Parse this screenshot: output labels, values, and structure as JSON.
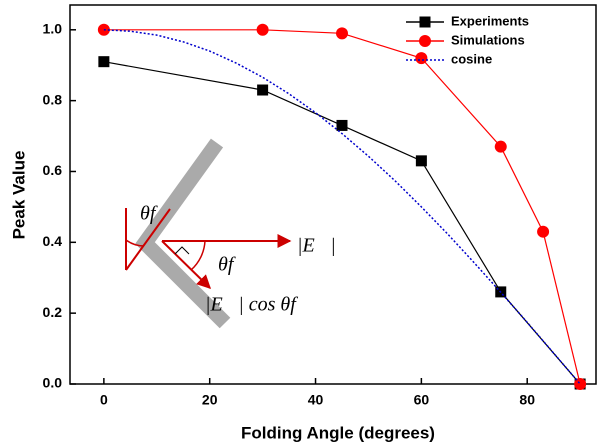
{
  "chart_data": {
    "type": "line",
    "xlabel": "Folding Angle (degrees)",
    "ylabel": "Peak Value",
    "xlim": [
      -6.4,
      93
    ],
    "ylim": [
      0,
      1.07
    ],
    "xticks": [
      0,
      20,
      40,
      60,
      80
    ],
    "yticks": [
      {
        "value": 0,
        "label": "0.0"
      },
      0.2,
      0.4,
      0.6,
      0.8,
      {
        "value": 1,
        "label": "1.0"
      }
    ],
    "legend": "upper right",
    "series": [
      {
        "name": "Experiments",
        "color": "#000000",
        "marker": "square",
        "dash": "solid",
        "x": [
          0,
          30,
          45,
          60,
          75,
          90
        ],
        "values": [
          0.91,
          0.83,
          0.73,
          0.63,
          0.26,
          0.0
        ]
      },
      {
        "name": "Simulations",
        "color": "#ff0000",
        "marker": "circle",
        "dash": "solid",
        "x": [
          0,
          30,
          45,
          60,
          75,
          83,
          90
        ],
        "values": [
          1.0,
          1.0,
          0.99,
          0.92,
          0.67,
          0.43,
          0.0
        ]
      },
      {
        "name": "cosine",
        "color": "#0000cc",
        "marker": "none",
        "dash": "dotted",
        "x": [
          0,
          5,
          10,
          15,
          20,
          25,
          30,
          35,
          40,
          45,
          50,
          55,
          60,
          65,
          70,
          75,
          80,
          85,
          90
        ],
        "values": [
          1.0,
          0.996,
          0.985,
          0.966,
          0.94,
          0.906,
          0.866,
          0.819,
          0.766,
          0.707,
          0.643,
          0.574,
          0.5,
          0.423,
          0.342,
          0.259,
          0.174,
          0.087,
          0.0
        ]
      }
    ],
    "annotations": [
      "θf",
      "θf",
      "|E⃗|",
      "|E⃗| cos θf"
    ]
  }
}
